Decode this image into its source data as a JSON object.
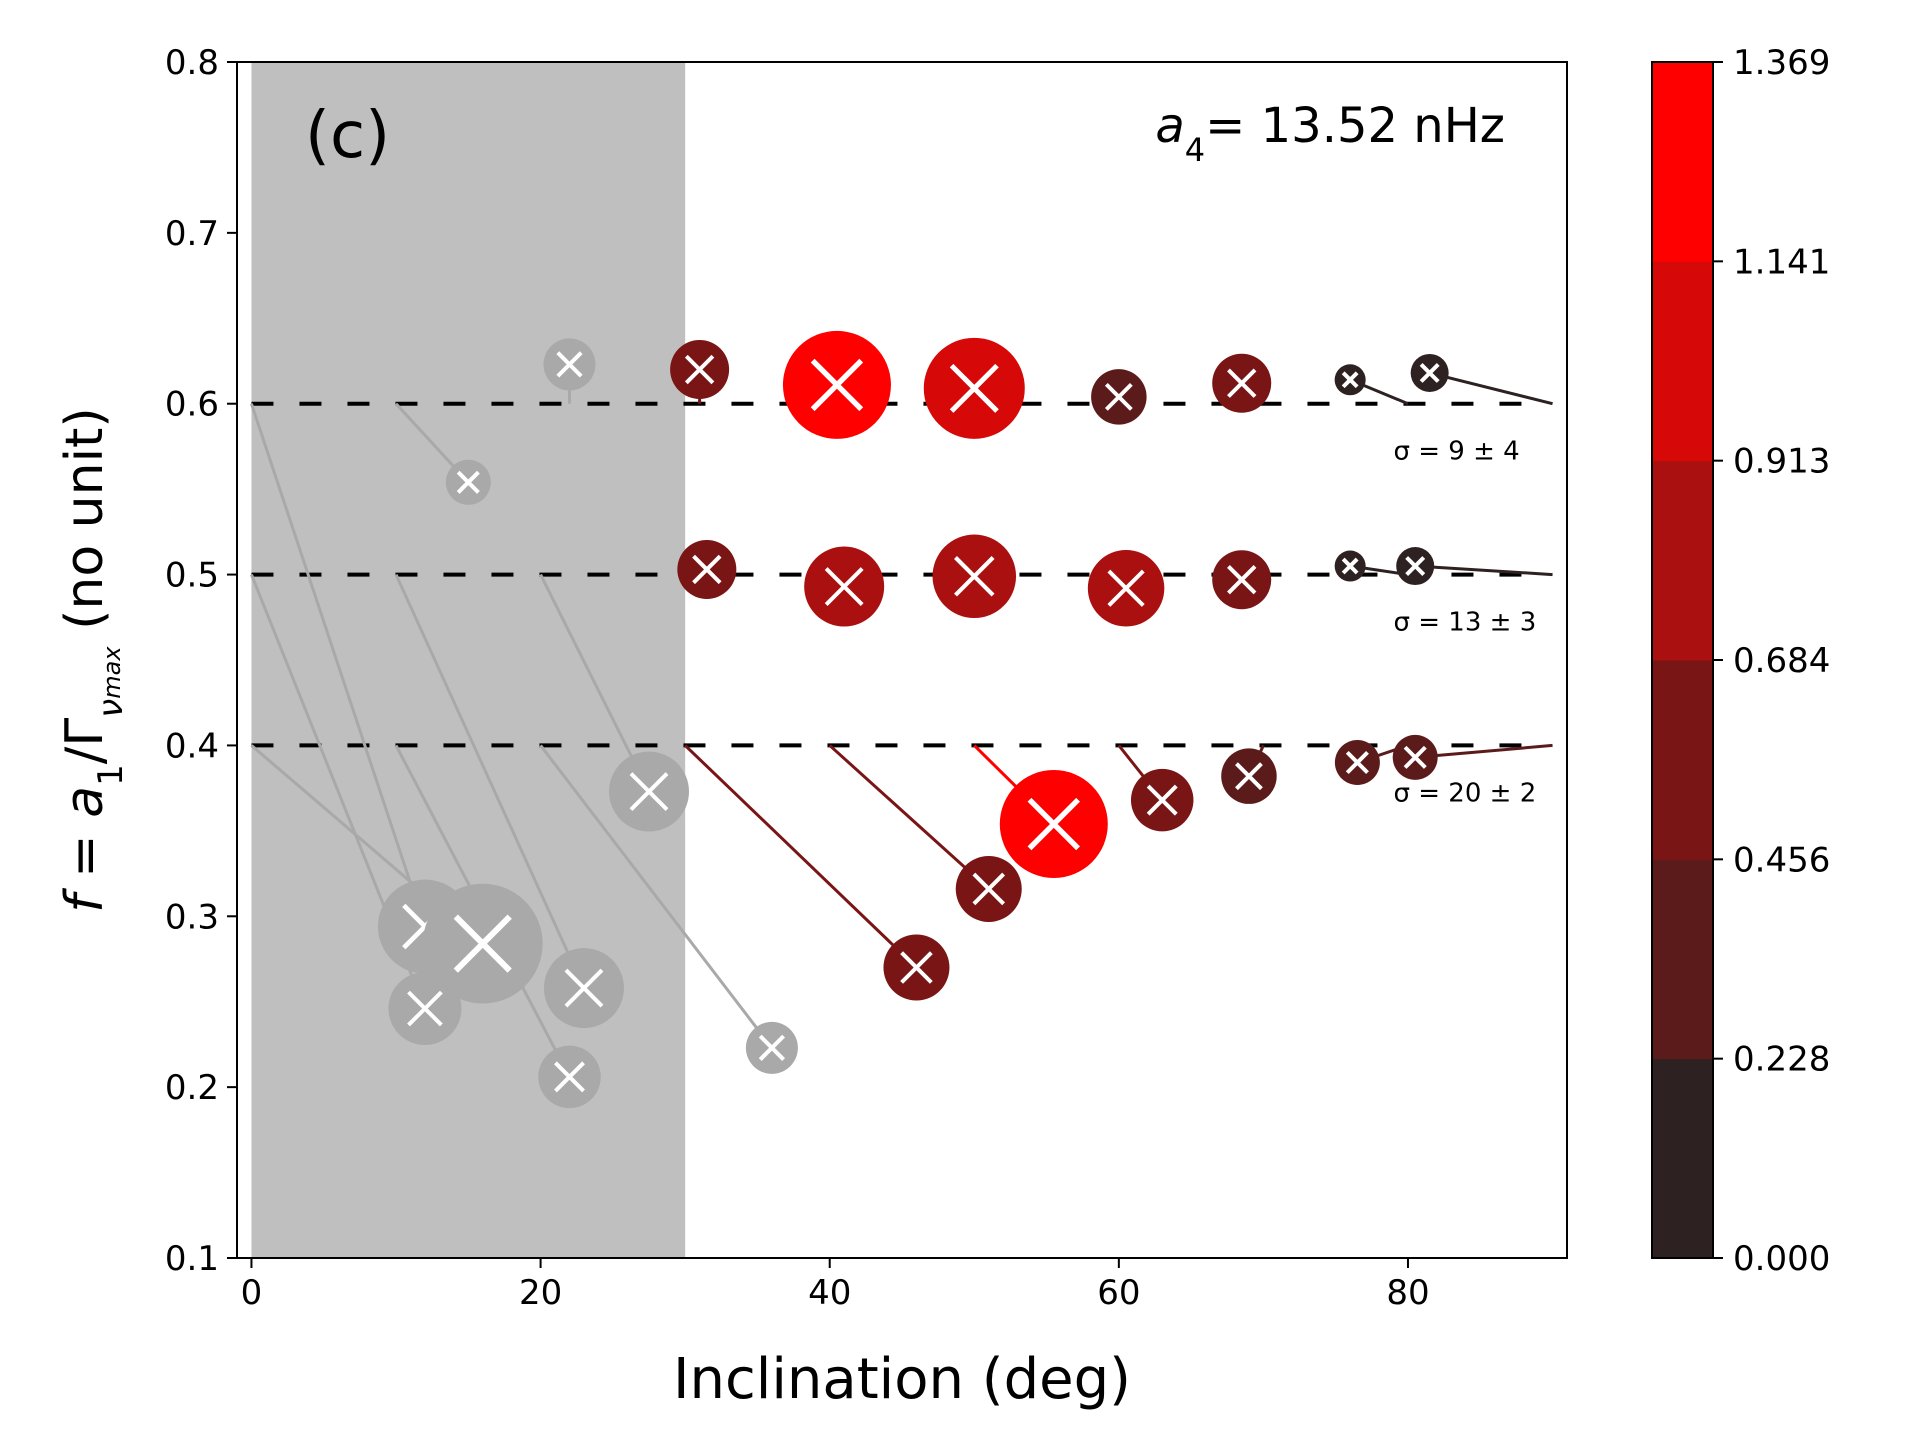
{
  "chart_data": {
    "type": "scatter",
    "panel_label": "(c)",
    "annotation": {
      "prefix": "a",
      "subscript": "4",
      "value_text": "= 13.52 nHz"
    },
    "xlabel": "Inclination (deg)",
    "ylabel": {
      "prefix": "f = a",
      "sub1": "1",
      "mid": "/Γ",
      "sub2": "ν",
      "sub3": "max",
      "suffix": "  (no unit)"
    },
    "xlim": [
      -1,
      91
    ],
    "ylim": [
      0.1,
      0.8
    ],
    "x_ticks": [
      0,
      20,
      40,
      60,
      80
    ],
    "x_tick_labels": [
      "0",
      "20",
      "40",
      "60",
      "80"
    ],
    "y_ticks": [
      0.1,
      0.2,
      0.3,
      0.4,
      0.5,
      0.6,
      0.7,
      0.8
    ],
    "y_tick_labels": [
      "0.1",
      "0.2",
      "0.3",
      "0.4",
      "0.5",
      "0.6",
      "0.7",
      "0.8"
    ],
    "shaded_region": {
      "x": [
        0,
        30
      ],
      "color": "#bfbfbf"
    },
    "reference_lines": [
      {
        "y": 0.6,
        "label": "σ = 9 ± 4"
      },
      {
        "y": 0.5,
        "label": "σ = 13 ± 3"
      },
      {
        "y": 0.4,
        "label": "σ = 20 ± 2"
      }
    ],
    "colorbar": {
      "tick_labels": [
        "0.000",
        "0.228",
        "0.456",
        "0.684",
        "0.913",
        "1.141",
        "1.369"
      ],
      "range": [
        0.0,
        1.369
      ],
      "band_colors": [
        "#2e2121",
        "#5c1b1b",
        "#7a1515",
        "#ab1010",
        "#d60808",
        "#ff0000"
      ]
    },
    "grey_color": "#a9a9a9",
    "series": [
      {
        "true_x": 22,
        "true_y": 0.6,
        "x": 22,
        "y": 0.623,
        "v": 0.4
      },
      {
        "true_x": 10,
        "true_y": 0.6,
        "x": 15,
        "y": 0.554,
        "v": 0.3
      },
      {
        "true_x": 31,
        "true_y": 0.6,
        "x": 31,
        "y": 0.62,
        "v": 0.5
      },
      {
        "true_x": 40,
        "true_y": 0.6,
        "x": 40.5,
        "y": 0.611,
        "v": 1.2
      },
      {
        "true_x": 50,
        "true_y": 0.6,
        "x": 50,
        "y": 0.609,
        "v": 1.1
      },
      {
        "true_x": 60,
        "true_y": 0.6,
        "x": 60,
        "y": 0.604,
        "v": 0.45
      },
      {
        "true_x": 68,
        "true_y": 0.6,
        "x": 68.5,
        "y": 0.612,
        "v": 0.5
      },
      {
        "true_x": 80,
        "true_y": 0.6,
        "x": 76,
        "y": 0.614,
        "v": 0.1
      },
      {
        "true_x": 90,
        "true_y": 0.6,
        "x": 81.5,
        "y": 0.618,
        "v": 0.2
      },
      {
        "true_x": 31,
        "true_y": 0.5,
        "x": 31.5,
        "y": 0.503,
        "v": 0.5
      },
      {
        "true_x": 40,
        "true_y": 0.5,
        "x": 41,
        "y": 0.493,
        "v": 0.8
      },
      {
        "true_x": 50,
        "true_y": 0.5,
        "x": 50,
        "y": 0.499,
        "v": 0.85
      },
      {
        "true_x": 60,
        "true_y": 0.5,
        "x": 60.5,
        "y": 0.492,
        "v": 0.75
      },
      {
        "true_x": 68,
        "true_y": 0.5,
        "x": 68.5,
        "y": 0.497,
        "v": 0.5
      },
      {
        "true_x": 80,
        "true_y": 0.5,
        "x": 76,
        "y": 0.505,
        "v": 0.1
      },
      {
        "true_x": 90,
        "true_y": 0.5,
        "x": 80.5,
        "y": 0.505,
        "v": 0.2
      },
      {
        "true_x": 30,
        "true_y": 0.4,
        "x": 46,
        "y": 0.27,
        "v": 0.6
      },
      {
        "true_x": 40,
        "true_y": 0.4,
        "x": 51,
        "y": 0.316,
        "v": 0.6
      },
      {
        "true_x": 50,
        "true_y": 0.4,
        "x": 55.5,
        "y": 0.354,
        "v": 1.2
      },
      {
        "true_x": 60,
        "true_y": 0.4,
        "x": 63,
        "y": 0.368,
        "v": 0.55
      },
      {
        "true_x": 70,
        "true_y": 0.4,
        "x": 69,
        "y": 0.382,
        "v": 0.45
      },
      {
        "true_x": 80,
        "true_y": 0.4,
        "x": 76.5,
        "y": 0.39,
        "v": 0.3
      },
      {
        "true_x": 90,
        "true_y": 0.4,
        "x": 80.5,
        "y": 0.393,
        "v": 0.3
      },
      {
        "true_x": 0,
        "true_y": 0.6,
        "x": 12,
        "y": 0.294,
        "v": 1.0
      },
      {
        "true_x": 0,
        "true_y": 0.5,
        "x": 12,
        "y": 0.246,
        "v": 0.7
      },
      {
        "true_x": 0,
        "true_y": 0.4,
        "x": 16,
        "y": 0.284,
        "v": 1.369
      },
      {
        "true_x": 10,
        "true_y": 0.5,
        "x": 23,
        "y": 0.258,
        "v": 0.8
      },
      {
        "true_x": 10,
        "true_y": 0.4,
        "x": 22,
        "y": 0.206,
        "v": 0.55
      },
      {
        "true_x": 20,
        "true_y": 0.5,
        "x": 27.5,
        "y": 0.373,
        "v": 0.8
      },
      {
        "true_x": 20,
        "true_y": 0.4,
        "x": 36,
        "y": 0.223,
        "v": 0.4
      }
    ]
  }
}
